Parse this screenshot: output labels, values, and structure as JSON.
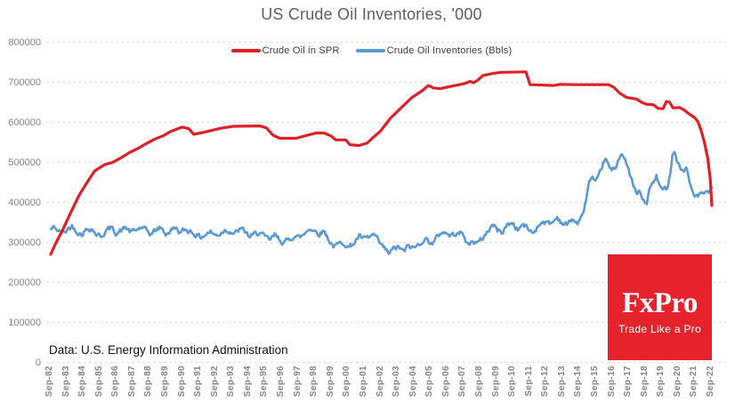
{
  "title": "US Crude Oil Inventories, '000",
  "source_note": "Data: U.S. Energy Information Administration",
  "logo": {
    "brand": "FxPro",
    "tagline": "Trade Like a Pro",
    "bg_color": "#e6232d"
  },
  "chart_data": {
    "type": "line",
    "title": "US Crude Oil Inventories, '000",
    "ylim": [
      0,
      800000
    ],
    "yticks": [
      0,
      100000,
      200000,
      300000,
      400000,
      500000,
      600000,
      700000,
      800000
    ],
    "x_range": [
      1982.75,
      2022.75
    ],
    "xlabels": [
      "Sep-82",
      "Sep-83",
      "Sep-84",
      "Sep-85",
      "Sep-86",
      "Sep-87",
      "Sep-88",
      "Sep-89",
      "Sep-90",
      "Sep-91",
      "Sep-92",
      "Sep-93",
      "Sep-94",
      "Sep-95",
      "Sep-96",
      "Sep-97",
      "Sep-98",
      "Sep-99",
      "Sep-00",
      "Sep-01",
      "Sep-02",
      "Sep-03",
      "Sep-04",
      "Sep-05",
      "Sep-06",
      "Sep-07",
      "Sep-08",
      "Sep-09",
      "Sep-10",
      "Sep-11",
      "Sep-12",
      "Sep-13",
      "Sep-14",
      "Sep-15",
      "Sep-16",
      "Sep-17",
      "Sep-18",
      "Sep-19",
      "Sep-20",
      "Sep-21",
      "Sep-22"
    ],
    "grid": "horizontal dashed",
    "grid_color": "#dedede",
    "legend_position": "top-center-inside",
    "series": [
      {
        "name": "Crude Oil Inventories (Bbls)",
        "color": "#5b9ad2",
        "noise_amplitude": 6000,
        "noise_seed": 42,
        "points": [
          [
            1982.75,
            332000
          ],
          [
            1983.0,
            338000
          ],
          [
            1983.2,
            328000
          ],
          [
            1983.5,
            322000
          ],
          [
            1983.8,
            334000
          ],
          [
            1984.05,
            341000
          ],
          [
            1984.3,
            330000
          ],
          [
            1984.6,
            321000
          ],
          [
            1984.9,
            331000
          ],
          [
            1985.2,
            337000
          ],
          [
            1985.5,
            321000
          ],
          [
            1985.8,
            315000
          ],
          [
            1986.1,
            329000
          ],
          [
            1986.4,
            336000
          ],
          [
            1986.7,
            325000
          ],
          [
            1987.0,
            329000
          ],
          [
            1987.3,
            337000
          ],
          [
            1987.6,
            325000
          ],
          [
            1987.9,
            330000
          ],
          [
            1988.2,
            337000
          ],
          [
            1988.5,
            329000
          ],
          [
            1988.8,
            321000
          ],
          [
            1989.1,
            330000
          ],
          [
            1989.4,
            337000
          ],
          [
            1989.7,
            321000
          ],
          [
            1990.0,
            329000
          ],
          [
            1990.3,
            338000
          ],
          [
            1990.6,
            323000
          ],
          [
            1990.9,
            331000
          ],
          [
            1991.2,
            329000
          ],
          [
            1991.5,
            321000
          ],
          [
            1991.8,
            312000
          ],
          [
            1992.1,
            320000
          ],
          [
            1992.4,
            327000
          ],
          [
            1992.7,
            317000
          ],
          [
            1993.0,
            322000
          ],
          [
            1993.3,
            333000
          ],
          [
            1993.6,
            329000
          ],
          [
            1993.9,
            321000
          ],
          [
            1994.2,
            333000
          ],
          [
            1994.5,
            327000
          ],
          [
            1994.8,
            313000
          ],
          [
            1995.1,
            319000
          ],
          [
            1995.4,
            327000
          ],
          [
            1995.7,
            311000
          ],
          [
            1996.0,
            305000
          ],
          [
            1996.3,
            317000
          ],
          [
            1996.6,
            307000
          ],
          [
            1996.9,
            299000
          ],
          [
            1997.2,
            307000
          ],
          [
            1997.5,
            319000
          ],
          [
            1997.8,
            311000
          ],
          [
            1998.1,
            321000
          ],
          [
            1998.4,
            337000
          ],
          [
            1998.7,
            329000
          ],
          [
            1999.0,
            323000
          ],
          [
            1999.3,
            329000
          ],
          [
            1999.6,
            305000
          ],
          [
            1999.9,
            289000
          ],
          [
            2000.2,
            295000
          ],
          [
            2000.5,
            301000
          ],
          [
            2000.8,
            287000
          ],
          [
            2001.1,
            299000
          ],
          [
            2001.4,
            315000
          ],
          [
            2001.7,
            307000
          ],
          [
            2002.0,
            311000
          ],
          [
            2002.3,
            319000
          ],
          [
            2002.6,
            299000
          ],
          [
            2002.9,
            285000
          ],
          [
            2003.2,
            272000
          ],
          [
            2003.5,
            283000
          ],
          [
            2003.8,
            289000
          ],
          [
            2004.1,
            275000
          ],
          [
            2004.4,
            291000
          ],
          [
            2004.7,
            285000
          ],
          [
            2005.0,
            293000
          ],
          [
            2005.3,
            309000
          ],
          [
            2005.6,
            305000
          ],
          [
            2005.9,
            297000
          ],
          [
            2006.2,
            317000
          ],
          [
            2006.5,
            329000
          ],
          [
            2006.8,
            319000
          ],
          [
            2007.1,
            317000
          ],
          [
            2007.4,
            331000
          ],
          [
            2007.7,
            317000
          ],
          [
            2008.0,
            293000
          ],
          [
            2008.3,
            305000
          ],
          [
            2008.6,
            297000
          ],
          [
            2008.9,
            311000
          ],
          [
            2009.2,
            329000
          ],
          [
            2009.5,
            345000
          ],
          [
            2009.8,
            329000
          ],
          [
            2010.1,
            327000
          ],
          [
            2010.4,
            345000
          ],
          [
            2010.7,
            349000
          ],
          [
            2011.0,
            331000
          ],
          [
            2011.3,
            345000
          ],
          [
            2011.6,
            335000
          ],
          [
            2011.9,
            323000
          ],
          [
            2012.2,
            339000
          ],
          [
            2012.5,
            355000
          ],
          [
            2012.8,
            347000
          ],
          [
            2013.1,
            349000
          ],
          [
            2013.4,
            363000
          ],
          [
            2013.7,
            349000
          ],
          [
            2014.0,
            343000
          ],
          [
            2014.3,
            359000
          ],
          [
            2014.6,
            347000
          ],
          [
            2014.9,
            361000
          ],
          [
            2015.1,
            399000
          ],
          [
            2015.3,
            449000
          ],
          [
            2015.5,
            461000
          ],
          [
            2015.7,
            443000
          ],
          [
            2015.9,
            459000
          ],
          [
            2016.1,
            489000
          ],
          [
            2016.3,
            511000
          ],
          [
            2016.5,
            489000
          ],
          [
            2016.7,
            477000
          ],
          [
            2016.9,
            485000
          ],
          [
            2017.1,
            507000
          ],
          [
            2017.25,
            528000
          ],
          [
            2017.4,
            517000
          ],
          [
            2017.6,
            491000
          ],
          [
            2017.8,
            469000
          ],
          [
            2018.0,
            441000
          ],
          [
            2018.2,
            419000
          ],
          [
            2018.4,
            427000
          ],
          [
            2018.6,
            401000
          ],
          [
            2018.8,
            397000
          ],
          [
            2019.0,
            437000
          ],
          [
            2019.2,
            447000
          ],
          [
            2019.4,
            465000
          ],
          [
            2019.6,
            439000
          ],
          [
            2019.8,
            429000
          ],
          [
            2020.0,
            435000
          ],
          [
            2020.2,
            465000
          ],
          [
            2020.35,
            521000
          ],
          [
            2020.45,
            533000
          ],
          [
            2020.6,
            511000
          ],
          [
            2020.8,
            491000
          ],
          [
            2021.0,
            477000
          ],
          [
            2021.2,
            487000
          ],
          [
            2021.4,
            449000
          ],
          [
            2021.6,
            425000
          ],
          [
            2021.8,
            417000
          ],
          [
            2022.0,
            415000
          ],
          [
            2022.2,
            423000
          ],
          [
            2022.4,
            419000
          ],
          [
            2022.6,
            423000
          ],
          [
            2022.75,
            430000
          ]
        ]
      },
      {
        "name": "Crude Oil in SPR",
        "color": "#dd2127",
        "noise_amplitude": 0,
        "points": [
          [
            1982.75,
            270000
          ],
          [
            1983.0,
            293000
          ],
          [
            1983.5,
            333000
          ],
          [
            1984.0,
            378000
          ],
          [
            1984.5,
            420000
          ],
          [
            1985.0,
            453000
          ],
          [
            1985.4,
            478000
          ],
          [
            1986.0,
            494000
          ],
          [
            1986.5,
            500000
          ],
          [
            1987.0,
            511000
          ],
          [
            1987.5,
            524000
          ],
          [
            1988.0,
            534000
          ],
          [
            1988.5,
            546000
          ],
          [
            1989.0,
            557000
          ],
          [
            1989.6,
            567000
          ],
          [
            1990.0,
            577000
          ],
          [
            1990.7,
            588000
          ],
          [
            1991.1,
            584000
          ],
          [
            1991.4,
            570000
          ],
          [
            1992.0,
            575000
          ],
          [
            1993.0,
            585000
          ],
          [
            1993.8,
            590000
          ],
          [
            1995.4,
            591000
          ],
          [
            1995.8,
            586000
          ],
          [
            1996.2,
            568000
          ],
          [
            1996.6,
            560000
          ],
          [
            1997.6,
            560000
          ],
          [
            1998.3,
            568000
          ],
          [
            1998.8,
            573000
          ],
          [
            1999.3,
            573000
          ],
          [
            1999.7,
            566000
          ],
          [
            2000.0,
            556000
          ],
          [
            2000.6,
            556000
          ],
          [
            2000.85,
            544000
          ],
          [
            2001.4,
            542000
          ],
          [
            2001.9,
            548000
          ],
          [
            2002.2,
            560000
          ],
          [
            2002.7,
            578000
          ],
          [
            2003.3,
            610000
          ],
          [
            2004.0,
            638000
          ],
          [
            2004.6,
            662000
          ],
          [
            2005.2,
            678000
          ],
          [
            2005.6,
            692000
          ],
          [
            2005.9,
            686000
          ],
          [
            2006.3,
            684000
          ],
          [
            2007.0,
            690000
          ],
          [
            2007.8,
            697000
          ],
          [
            2008.1,
            702000
          ],
          [
            2008.35,
            699000
          ],
          [
            2008.6,
            706000
          ],
          [
            2008.9,
            717000
          ],
          [
            2009.5,
            722000
          ],
          [
            2010.0,
            725000
          ],
          [
            2011.5,
            726000
          ],
          [
            2011.75,
            694000
          ],
          [
            2013.2,
            692000
          ],
          [
            2013.6,
            695000
          ],
          [
            2014.5,
            694000
          ],
          [
            2016.5,
            694000
          ],
          [
            2016.8,
            688000
          ],
          [
            2017.2,
            672000
          ],
          [
            2017.6,
            662000
          ],
          [
            2018.2,
            658000
          ],
          [
            2018.5,
            650000
          ],
          [
            2018.8,
            645000
          ],
          [
            2019.2,
            644000
          ],
          [
            2019.5,
            635000
          ],
          [
            2019.8,
            634000
          ],
          [
            2020.0,
            652000
          ],
          [
            2020.2,
            650000
          ],
          [
            2020.4,
            636000
          ],
          [
            2020.8,
            637000
          ],
          [
            2021.1,
            630000
          ],
          [
            2021.4,
            620000
          ],
          [
            2021.7,
            612000
          ],
          [
            2021.9,
            602000
          ],
          [
            2022.1,
            580000
          ],
          [
            2022.3,
            550000
          ],
          [
            2022.5,
            510000
          ],
          [
            2022.65,
            460000
          ],
          [
            2022.75,
            392000
          ]
        ]
      }
    ]
  },
  "legend": {
    "entries": [
      {
        "label": "Crude Oil in SPR",
        "color": "#dd2127"
      },
      {
        "label": "Crude Oil Inventories (Bbls)",
        "color": "#5b9ad2"
      }
    ]
  }
}
